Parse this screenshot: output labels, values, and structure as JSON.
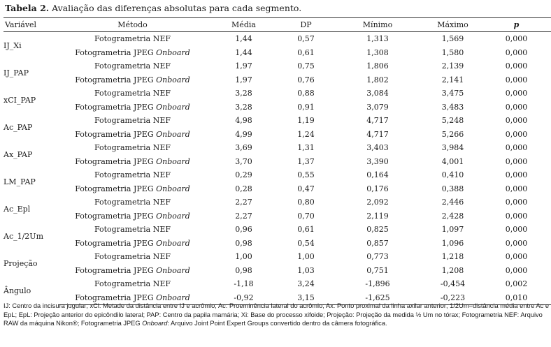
{
  "caption": {
    "label": "Tabela 2.",
    "text": "Avaliação das diferenças absolutas para cada segmento."
  },
  "headers": [
    "Variável",
    "Método",
    "Média",
    "DP",
    "Mínimo",
    "Máximo",
    "p"
  ],
  "method_prefix": "Fotogrametria",
  "groups": [
    {
      "variable": "IJ_Xi",
      "rows": [
        {
          "method": "NEF",
          "onboard": "",
          "media": "1,44",
          "dp": "0,57",
          "min": "1,313",
          "max": "1,569",
          "p": "0,000"
        },
        {
          "method": "JPEG",
          "onboard": "Onboard",
          "media": "1,44",
          "dp": "0,61",
          "min": "1,308",
          "max": "1,580",
          "p": "0,000"
        }
      ]
    },
    {
      "variable": "IJ_PAP",
      "rows": [
        {
          "method": "NEF",
          "onboard": "",
          "media": "1,97",
          "dp": "0,75",
          "min": "1,806",
          "max": "2,139",
          "p": "0,000"
        },
        {
          "method": "JPEG",
          "onboard": "Onboard",
          "media": "1,97",
          "dp": "0,76",
          "min": "1,802",
          "max": "2,141",
          "p": "0,000"
        }
      ]
    },
    {
      "variable": "xCI_PAP",
      "rows": [
        {
          "method": "NEF",
          "onboard": "",
          "media": "3,28",
          "dp": "0,88",
          "min": "3,084",
          "max": "3,475",
          "p": "0,000"
        },
        {
          "method": "JPEG",
          "onboard": "Onboard",
          "media": "3,28",
          "dp": "0,91",
          "min": "3,079",
          "max": "3,483",
          "p": "0,000"
        }
      ]
    },
    {
      "variable": "Ac_PAP",
      "rows": [
        {
          "method": "NEF",
          "onboard": "",
          "media": "4,98",
          "dp": "1,19",
          "min": "4,717",
          "max": "5,248",
          "p": "0,000"
        },
        {
          "method": "JPEG",
          "onboard": "Onboard",
          "media": "4,99",
          "dp": "1,24",
          "min": "4,717",
          "max": "5,266",
          "p": "0,000"
        }
      ]
    },
    {
      "variable": "Ax_PAP",
      "rows": [
        {
          "method": "NEF",
          "onboard": "",
          "media": "3,69",
          "dp": "1,31",
          "min": "3,403",
          "max": "3,984",
          "p": "0,000"
        },
        {
          "method": "JPEG",
          "onboard": "Onboard",
          "media": "3,70",
          "dp": "1,37",
          "min": "3,390",
          "max": "4,001",
          "p": "0,000"
        }
      ]
    },
    {
      "variable": "LM_PAP",
      "rows": [
        {
          "method": "NEF",
          "onboard": "",
          "media": "0,29",
          "dp": "0,55",
          "min": "0,164",
          "max": "0,410",
          "p": "0,000"
        },
        {
          "method": "JPEG",
          "onboard": "Onboard",
          "media": "0,28",
          "dp": "0,47",
          "min": "0,176",
          "max": "0,388",
          "p": "0,000"
        }
      ]
    },
    {
      "variable": "Ac_Epl",
      "rows": [
        {
          "method": "NEF",
          "onboard": "",
          "media": "2,27",
          "dp": "0,80",
          "min": "2,092",
          "max": "2,446",
          "p": "0,000"
        },
        {
          "method": "JPEG",
          "onboard": "Onboard",
          "media": "2,27",
          "dp": "0,70",
          "min": "2,119",
          "max": "2,428",
          "p": "0,000"
        }
      ]
    },
    {
      "variable": "Ac_1/2Um",
      "rows": [
        {
          "method": "NEF",
          "onboard": "",
          "media": "0,96",
          "dp": "0,61",
          "min": "0,825",
          "max": "1,097",
          "p": "0,000"
        },
        {
          "method": "JPEG",
          "onboard": "Onboard",
          "media": "0,98",
          "dp": "0,54",
          "min": "0,857",
          "max": "1,096",
          "p": "0,000"
        }
      ]
    },
    {
      "variable": "Projeção",
      "rows": [
        {
          "method": "NEF",
          "onboard": "",
          "media": "1,00",
          "dp": "1,00",
          "min": "0,773",
          "max": "1,218",
          "p": "0,000"
        },
        {
          "method": "JPEG",
          "onboard": "Onboard",
          "media": "0,98",
          "dp": "1,03",
          "min": "0,751",
          "max": "1,208",
          "p": "0,000"
        }
      ]
    },
    {
      "variable": "Ângulo",
      "rows": [
        {
          "method": "NEF",
          "onboard": "",
          "media": "-1,18",
          "dp": "3,24",
          "min": "-1,896",
          "max": "-0,454",
          "p": "0,002"
        },
        {
          "method": "JPEG",
          "onboard": "Onboard",
          "media": "-0,92",
          "dp": "3,15",
          "min": "-1,625",
          "max": "-0,223",
          "p": "0,010"
        }
      ]
    }
  ],
  "footnote": {
    "part1": "IJ: Centro da incisura jugular; xCl: Metade da distância entre IJ e acrômio; Ac: Proeminência lateral do acrômio; Ax: Ponto proximal da linha axilar anterior; 1/2Um=distância média entre Ac e EpL; EpL: Projeção anterior do epicôndilo lateral; PAP: Centro da papila mamária; Xi: Base do processo xifoide; Projeção: Projeção da medida ½ Um no tórax; Fotogrametria NEF: Arquivo RAW da máquina Nikon®; Fotogrametria JPEG ",
    "italic": "Onboard",
    "part2": ": Arquivo Joint Point Expert Groups convertido dentro da câmera fotográfica."
  }
}
